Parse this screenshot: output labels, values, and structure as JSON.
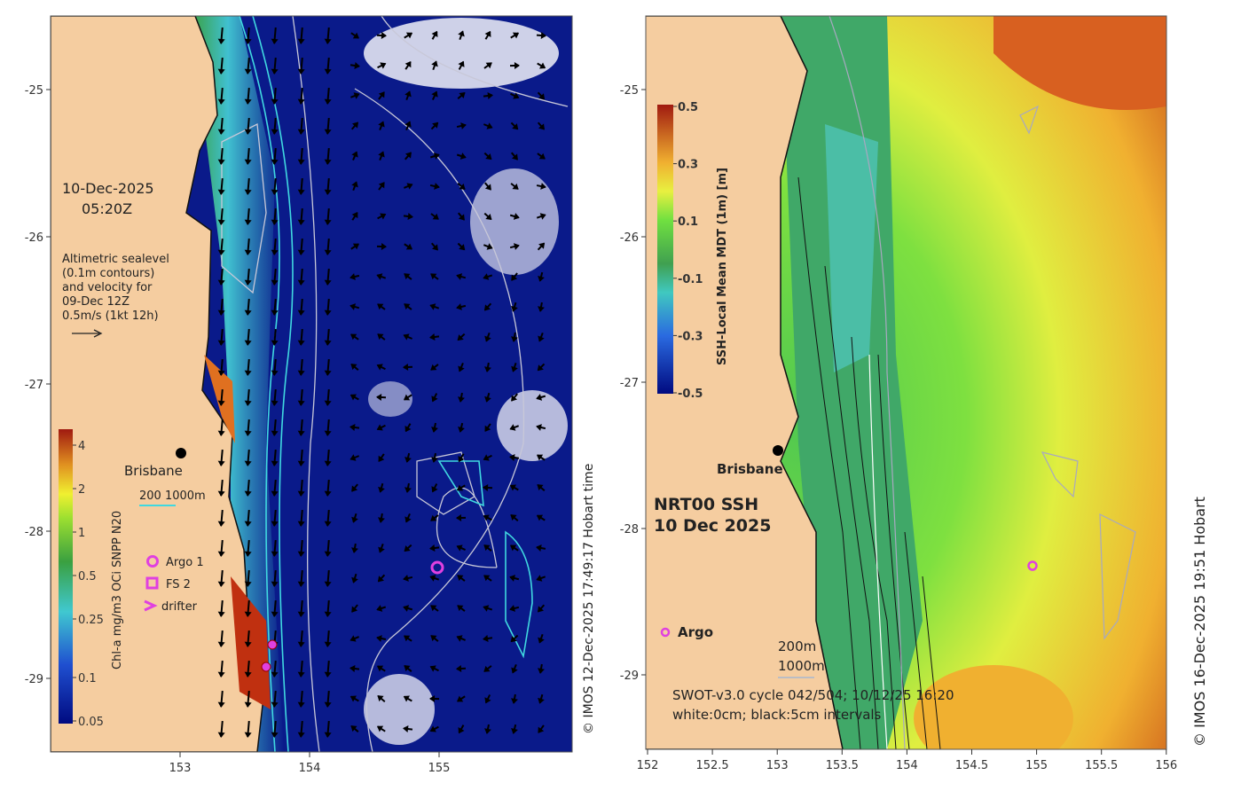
{
  "left_map": {
    "date": "10-Dec-2025",
    "time": "05:20Z",
    "note_lines": [
      "Altimetric sealevel",
      "(0.1m contours)",
      "and velocity for",
      "09-Dec 12Z",
      "0.5m/s (1kt 12h)"
    ],
    "city": "Brisbane",
    "isobath_label": "200  1000m",
    "legend": [
      {
        "label": "Argo 1",
        "symbol": "circle"
      },
      {
        "label": "FS 2",
        "symbol": "square"
      },
      {
        "label": "drifter",
        "symbol": "chevron"
      }
    ],
    "colorbar": {
      "label": "Chl-a mg/m3 OCi SNPP N20",
      "ticks": [
        "4",
        "2",
        "1",
        "0.5",
        "0.25",
        "0.1",
        "0.05"
      ]
    },
    "y_ticks": [
      "-25",
      "-26",
      "-27",
      "-28",
      "-29"
    ],
    "x_ticks": [
      "153",
      "154",
      "155"
    ],
    "credit": "© IMOS 12-Dec-2025 17:49:17 Hobart time",
    "colors": {
      "land": "#f5cda0",
      "ocean": "#0a1a8a",
      "contour": "#c8c8d8",
      "isobath": "#40d8e0",
      "marker": "#e040e0"
    }
  },
  "right_map": {
    "title_lines": [
      "NRT00 SSH",
      "10 Dec 2025"
    ],
    "city": "Brisbane",
    "argo_label": "Argo",
    "isobath_lines": [
      "200m",
      "1000m"
    ],
    "footer_lines": [
      "SWOT-v3.0 cycle 042/504; 10/12/25 16:20",
      "white:0cm; black:5cm intervals"
    ],
    "colorbar": {
      "label": "SSH-Local Mean MDT (1m) [m]",
      "ticks": [
        "0.5",
        "0.3",
        "0.1",
        "-0.1",
        "-0.3",
        "-0.5"
      ]
    },
    "y_ticks": [
      "-25",
      "-26",
      "-27",
      "-28",
      "-29"
    ],
    "x_ticks": [
      "152",
      "152.5",
      "153",
      "153.5",
      "154",
      "154.5",
      "155",
      "155.5",
      "156"
    ],
    "credit": "© IMOS 16-Dec-2025 19:51 Hobart",
    "colors": {
      "land": "#f5cda0",
      "marker": "#e040e0"
    }
  }
}
